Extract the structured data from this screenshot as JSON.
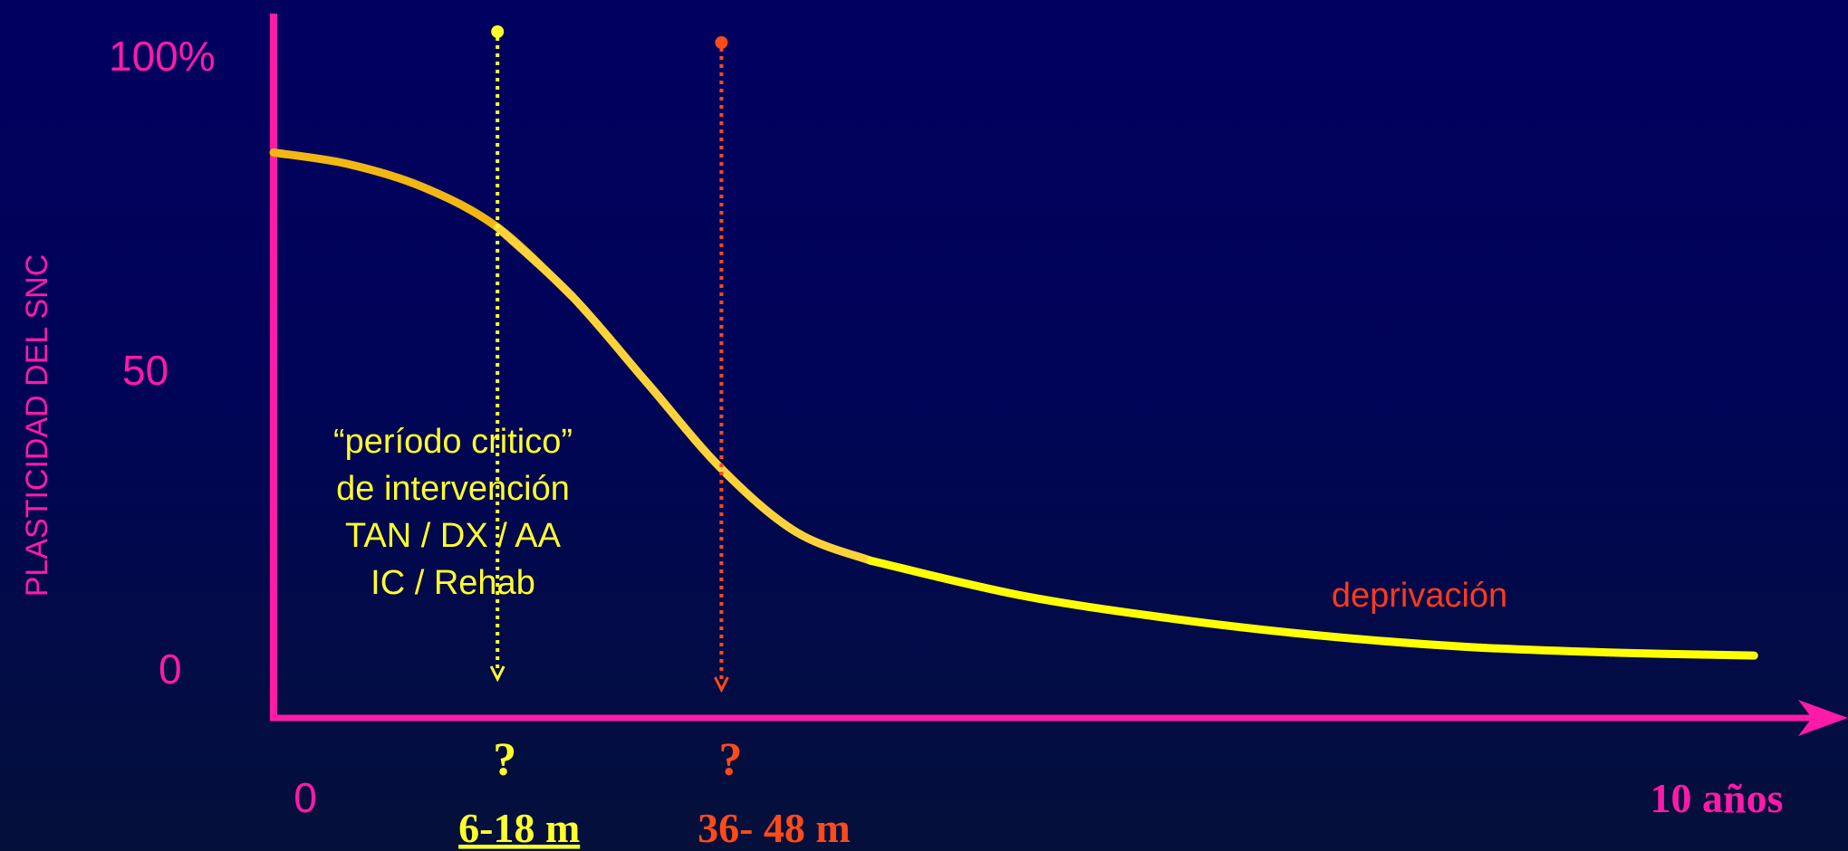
{
  "colors": {
    "axis": "#ff1aa8",
    "curve_early": "#f2b712",
    "curve_mid": "#ffd23a",
    "curve_late": "#ffff00",
    "marker_critical": "#ffff2a",
    "marker_deprivation": "#ff4a1a",
    "text_pink": "#ff1aa8",
    "text_yellow": "#ffff2a",
    "text_orange": "#ff3a1a"
  },
  "chart_data": {
    "type": "line",
    "ylabel": "PLASTICIDAD DEL SNC",
    "y_ticks": [
      "100%",
      "50",
      "0"
    ],
    "x_ticks": [
      "0",
      "10 años"
    ],
    "ylim": [
      0,
      100
    ],
    "xlim": [
      0,
      120
    ],
    "x_unit": "meses",
    "series": [
      {
        "x": [
          0,
          6,
          12,
          18,
          24,
          30,
          36,
          42,
          48,
          60,
          72,
          84,
          96,
          108,
          119
        ],
        "y": [
          90,
          88,
          84,
          77,
          65,
          50,
          35,
          24,
          19,
          13,
          9,
          6,
          4,
          3,
          2.5
        ]
      }
    ],
    "markers": [
      {
        "x": 18,
        "question_mark": "?",
        "label": "6-18 m",
        "color_key": "marker_critical"
      },
      {
        "x": 36,
        "question_mark": "?",
        "label": "36- 48 m",
        "color_key": "marker_deprivation"
      }
    ],
    "annotations": {
      "critical_period": [
        "“período critico”",
        "de intervención",
        "TAN / DX / AA",
        "IC / Rehab"
      ],
      "deprivation": "deprivación"
    }
  }
}
